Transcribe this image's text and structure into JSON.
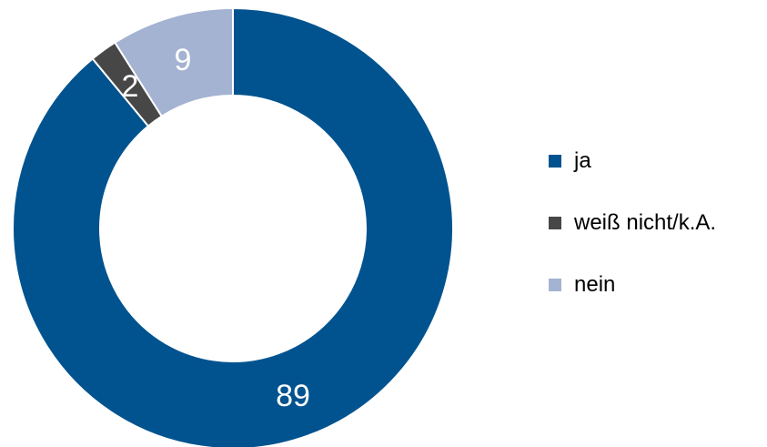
{
  "chart_data": {
    "type": "pie",
    "subtype": "donut",
    "categories": [
      "ja",
      "weiß nicht/k.A.",
      "nein"
    ],
    "values": [
      89,
      2,
      9
    ],
    "colors": [
      "#00538f",
      "#474747",
      "#a3b3d1"
    ],
    "data_labels": [
      "89",
      "2",
      "9"
    ],
    "legend_position": "right",
    "start_angle": "top",
    "direction": "clockwise"
  }
}
